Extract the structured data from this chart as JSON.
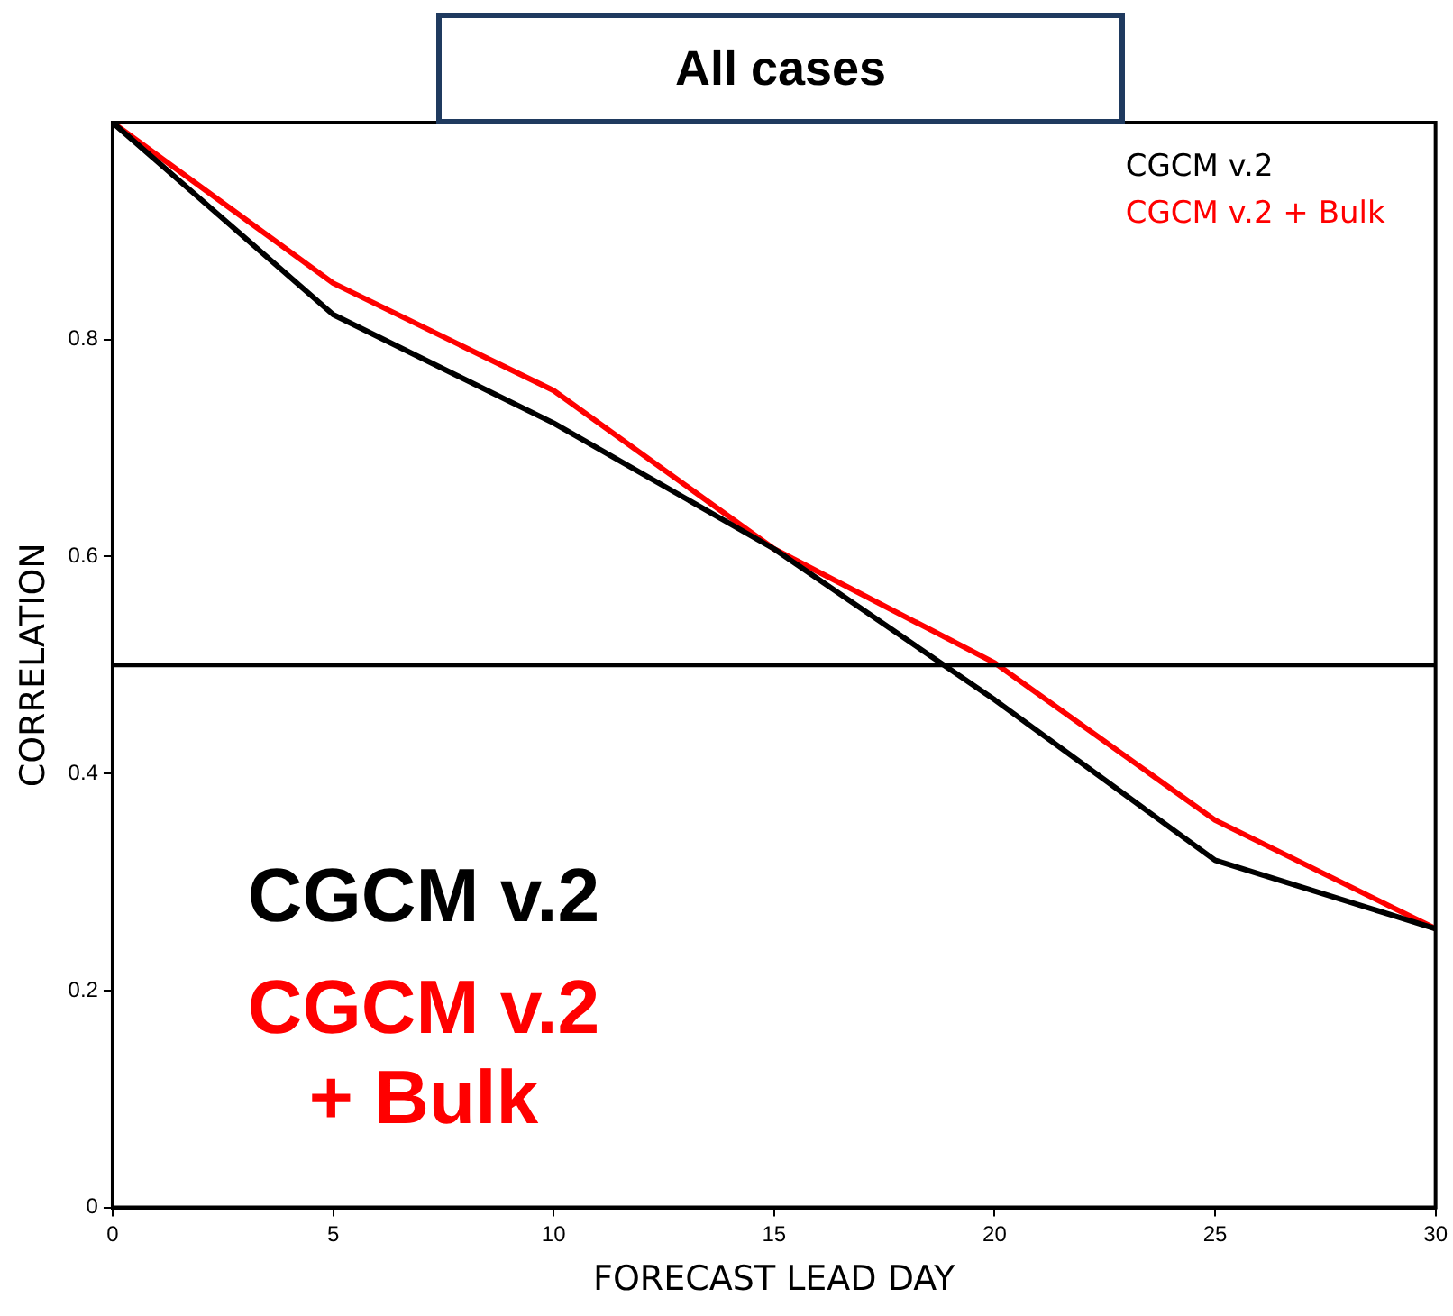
{
  "chart_data": {
    "type": "line",
    "title": "All cases",
    "xlabel": "FORECAST LEAD DAY",
    "ylabel": "CORRELATION",
    "x": [
      0,
      5,
      10,
      15,
      20,
      25,
      30
    ],
    "series": [
      {
        "name": "CGCM v.2",
        "color": "#000000",
        "values": [
          1.0,
          0.823,
          0.723,
          0.607,
          0.468,
          0.32,
          0.257
        ]
      },
      {
        "name": "CGCM v.2 + Bulk",
        "color": "#ff0000",
        "values": [
          1.0,
          0.852,
          0.753,
          0.607,
          0.502,
          0.357,
          0.257
        ]
      }
    ],
    "xlim": [
      0,
      30
    ],
    "xticks": [
      0,
      5,
      10,
      15,
      20,
      25,
      30
    ],
    "ylim": [
      0,
      1
    ],
    "yticks": [
      0,
      0.2,
      0.4,
      0.6,
      0.8
    ],
    "ref_lines": [
      {
        "axis": "y",
        "value": 0.5,
        "color": "#000000"
      }
    ],
    "annotations": [
      "CGCM v.2",
      "CGCM v.2 + Bulk"
    ],
    "grid": false,
    "legend": "top right",
    "marker": "none",
    "line_style": "solid"
  }
}
